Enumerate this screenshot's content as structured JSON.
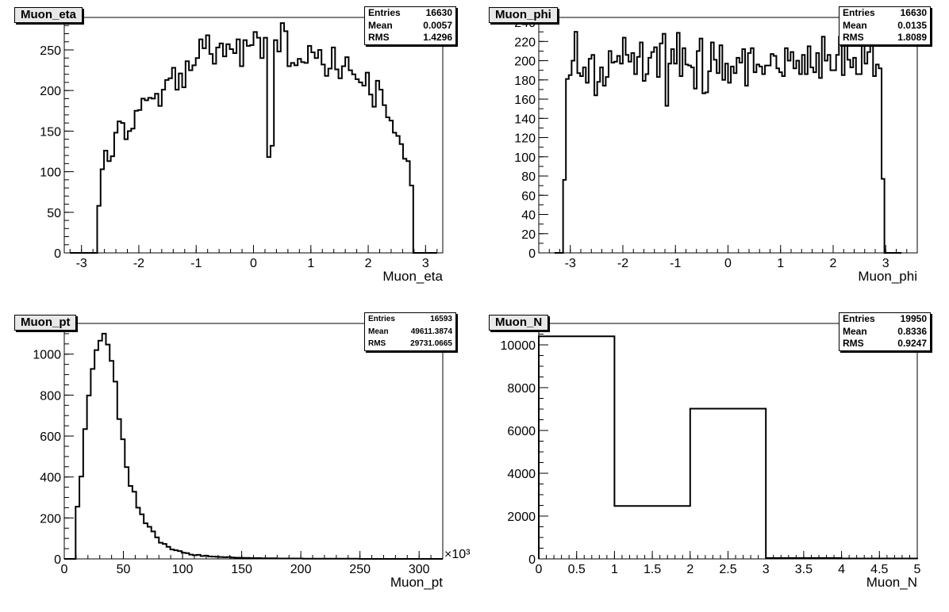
{
  "chart_data": [
    {
      "type": "bar",
      "name": "Muon_eta",
      "title": "Muon_eta",
      "xlabel": "Muon_eta",
      "ylabel": "",
      "xlim": [
        -3.3,
        3.3
      ],
      "ylim": [
        0,
        290
      ],
      "x_ticks": [
        -3,
        -2,
        -1,
        0,
        1,
        2,
        3
      ],
      "y_ticks": [
        0,
        50,
        100,
        150,
        200,
        250
      ],
      "x_minor": 0.2,
      "y_minor": 10,
      "bin_edges_range": [
        -3.2,
        3.2
      ],
      "values": [
        0,
        0,
        0,
        0,
        0,
        0,
        0,
        0,
        58,
        103,
        126,
        113,
        119,
        148,
        162,
        160,
        140,
        150,
        153,
        175,
        176,
        190,
        188,
        191,
        190,
        196,
        181,
        201,
        213,
        215,
        228,
        201,
        221,
        204,
        236,
        225,
        231,
        240,
        263,
        252,
        268,
        245,
        233,
        253,
        258,
        242,
        257,
        251,
        246,
        263,
        230,
        262,
        255,
        256,
        272,
        265,
        240,
        265,
        118,
        132,
        262,
        248,
        283,
        273,
        230,
        234,
        231,
        239,
        235,
        234,
        255,
        247,
        240,
        250,
        232,
        218,
        227,
        253,
        226,
        215,
        230,
        241,
        225,
        220,
        214,
        210,
        206,
        222,
        195,
        180,
        212,
        201,
        182,
        167,
        163,
        148,
        144,
        134,
        116,
        113,
        83,
        0,
        0,
        0,
        0,
        0,
        0,
        0
      ]
    },
    {
      "type": "bar",
      "name": "Muon_phi",
      "title": "Muon_phi",
      "xlabel": "Muon_phi",
      "ylabel": "",
      "xlim": [
        -3.6,
        3.6
      ],
      "ylim": [
        0,
        245
      ],
      "x_ticks": [
        -3,
        -2,
        -1,
        0,
        1,
        2,
        3
      ],
      "y_ticks": [
        0,
        20,
        40,
        60,
        80,
        100,
        120,
        140,
        160,
        180,
        200,
        220,
        240
      ],
      "x_minor": 0.2,
      "y_minor": 10,
      "bin_edges_range": [
        -3.3,
        3.3
      ],
      "values": [
        0,
        0,
        0,
        76,
        181,
        185,
        200,
        230,
        187,
        184,
        193,
        177,
        202,
        206,
        164,
        178,
        193,
        174,
        183,
        210,
        198,
        199,
        205,
        197,
        224,
        206,
        199,
        208,
        186,
        204,
        219,
        179,
        186,
        203,
        209,
        214,
        183,
        218,
        228,
        153,
        197,
        212,
        197,
        229,
        184,
        213,
        196,
        195,
        193,
        171,
        210,
        223,
        166,
        167,
        189,
        219,
        201,
        187,
        216,
        180,
        197,
        177,
        194,
        187,
        203,
        198,
        212,
        174,
        208,
        213,
        188,
        196,
        194,
        186,
        195,
        195,
        207,
        205,
        192,
        188,
        184,
        213,
        200,
        209,
        192,
        200,
        186,
        206,
        186,
        215,
        193,
        188,
        208,
        182,
        225,
        200,
        206,
        190,
        190,
        206,
        225,
        185,
        216,
        201,
        193,
        203,
        186,
        186,
        220,
        197,
        209,
        232,
        184,
        196,
        192,
        77,
        0,
        0,
        0,
        0,
        0,
        0
      ]
    },
    {
      "type": "bar",
      "name": "Muon_pt",
      "title": "Muon_pt",
      "xlabel": "Muon_pt",
      "ylabel": "",
      "x_exponent": "×10³",
      "xlim": [
        0,
        320
      ],
      "ylim": [
        0,
        1150
      ],
      "x_ticks": [
        0,
        50,
        100,
        150,
        200,
        250,
        300
      ],
      "y_ticks": [
        0,
        200,
        400,
        600,
        800,
        1000
      ],
      "x_minor": 10,
      "y_minor": 50,
      "bin_edges_range": [
        0,
        320
      ],
      "values": [
        0,
        0,
        0,
        255,
        402,
        634,
        798,
        928,
        1020,
        1066,
        1100,
        1047,
        967,
        866,
        683,
        584,
        448,
        356,
        328,
        250,
        218,
        174,
        157,
        134,
        105,
        79,
        73,
        59,
        46,
        42,
        38,
        30,
        28,
        21,
        18,
        20,
        14,
        16,
        12,
        11,
        10,
        9,
        8,
        9,
        7,
        6,
        6,
        5,
        5,
        4,
        4,
        4,
        3,
        3,
        3,
        3,
        2,
        2,
        2,
        2,
        2,
        2,
        2,
        1,
        1,
        1,
        1,
        1,
        1,
        1,
        1,
        1,
        1,
        1,
        1,
        1,
        1,
        1,
        0,
        0,
        0,
        0,
        0,
        0,
        0,
        0,
        0,
        0,
        0,
        0,
        0,
        0,
        0,
        0,
        0,
        0,
        0,
        0,
        0,
        0
      ]
    },
    {
      "type": "bar",
      "name": "Muon_N",
      "title": "Muon_N",
      "xlabel": "Muon_N",
      "ylabel": "",
      "xlim": [
        0,
        5
      ],
      "ylim": [
        0,
        11000
      ],
      "x_ticks": [
        0,
        0.5,
        1,
        1.5,
        2,
        2.5,
        3,
        3.5,
        4,
        4.5,
        5
      ],
      "x_tick_labels": [
        "0",
        "0.5",
        "1",
        "1.5",
        "2",
        "2.5",
        "3",
        "3.5",
        "4",
        "4.5",
        "5"
      ],
      "y_ticks": [
        0,
        2000,
        4000,
        6000,
        8000,
        10000
      ],
      "x_minor": 0.1,
      "y_minor": 500,
      "bin_edges_range": [
        0,
        5
      ],
      "values": [
        10400,
        2470,
        7020,
        40,
        20
      ]
    }
  ],
  "stats": [
    {
      "entries_label": "Entries",
      "entries": "16630",
      "mean_label": "Mean",
      "mean": "0.0057",
      "rms_label": "RMS",
      "rms": "1.4296"
    },
    {
      "entries_label": "Entries",
      "entries": "16630",
      "mean_label": "Mean",
      "mean": "0.0135",
      "rms_label": "RMS",
      "rms": "1.8089"
    },
    {
      "entries_label": "Entries",
      "entries": "16593",
      "mean_label": "Mean",
      "mean": "49611.3874",
      "rms_label": "RMS",
      "rms": "29731.0665"
    },
    {
      "entries_label": "Entries",
      "entries": "19950",
      "mean_label": "Mean",
      "mean": "0.8336",
      "rms_label": "RMS",
      "rms": "0.9247"
    }
  ]
}
